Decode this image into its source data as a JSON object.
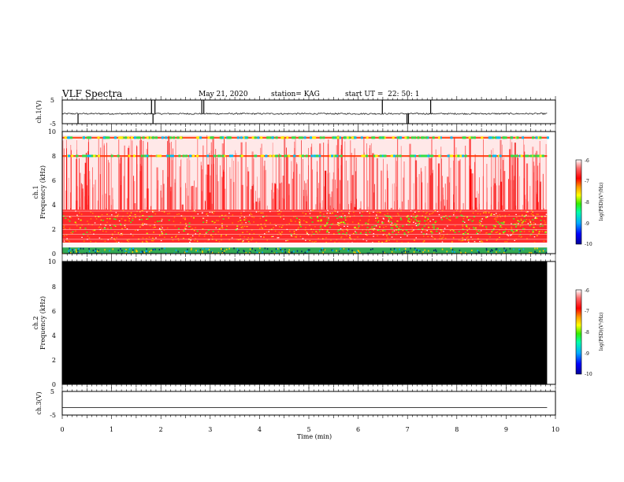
{
  "header": {
    "title": "VLF Spectra",
    "date": "May 21, 2020",
    "station": "station= KAG",
    "start_time": "start UT =  22: 50: 1"
  },
  "chart_data": [
    {
      "type": "line",
      "panel": "ch1-waveform",
      "ylabel": "ch.1(V)",
      "ylim": [
        -5,
        5
      ],
      "yticks": [
        "5",
        "-5"
      ],
      "xlim": [
        0,
        10
      ],
      "baseline": -0.8,
      "data_end_min": 9.83,
      "spikes": [
        {
          "x": 0.32,
          "y": -5
        },
        {
          "x": 1.81,
          "y": 5
        },
        {
          "x": 1.84,
          "y": -5
        },
        {
          "x": 1.88,
          "y": 5
        },
        {
          "x": 2.83,
          "y": 5
        },
        {
          "x": 2.87,
          "y": 5
        },
        {
          "x": 6.49,
          "y": 5
        },
        {
          "x": 6.99,
          "y": -5
        },
        {
          "x": 7.02,
          "y": -5
        },
        {
          "x": 7.47,
          "y": 5
        }
      ]
    },
    {
      "type": "heatmap",
      "panel": "ch1-spectrogram",
      "ylabel": "ch.1\nFrequency (kHz)",
      "ylim": [
        0,
        10
      ],
      "yticks": [
        "0",
        "2",
        "4",
        "6",
        "8",
        "10"
      ],
      "xlim": [
        0,
        10
      ],
      "data_end_min": 9.83,
      "colorbar": {
        "label": "log(PSD)(V²/Hz)",
        "range": [
          -10,
          -6
        ],
        "ticks": [
          "-6",
          "-7",
          "-8",
          "-9",
          "-10"
        ],
        "colors": [
          "#000099",
          "#0000ff",
          "#00aaff",
          "#00ffaa",
          "#33ee00",
          "#ffff00",
          "#ff9900",
          "#ff0000",
          "#ff4444",
          "#ffffff"
        ]
      },
      "features": {
        "dense_band_khz": [
          0.9,
          3.6
        ],
        "green_patch_khz": [
          1.6,
          3.2
        ],
        "lines_khz": [
          8.0,
          9.5
        ],
        "low_band_khz": [
          0.0,
          0.5
        ]
      }
    },
    {
      "type": "heatmap",
      "panel": "ch2-spectrogram",
      "ylabel": "ch.2\nFrequency (kHz)",
      "ylim": [
        0,
        10
      ],
      "yticks": [
        "0",
        "2",
        "4",
        "6",
        "8",
        "10"
      ],
      "xlim": [
        0,
        10
      ],
      "data_end_min": 9.83,
      "fill": "#000000",
      "colorbar": {
        "label": "log(PSD)(V²/Hz)",
        "range": [
          -10,
          -6
        ],
        "ticks": [
          "-6",
          "-7",
          "-8",
          "-9",
          "-10"
        ]
      }
    },
    {
      "type": "line",
      "panel": "ch3-waveform",
      "ylabel": "ch.3(V)",
      "ylim": [
        -5,
        5
      ],
      "yticks": [
        "5",
        "-5"
      ],
      "xlim": [
        0,
        10
      ],
      "baseline": -1.8,
      "data_end_min": 9.83
    }
  ],
  "x_axis": {
    "label": "Time (min)",
    "ticks": [
      "0",
      "1",
      "2",
      "3",
      "4",
      "5",
      "6",
      "7",
      "8",
      "9",
      "10"
    ]
  }
}
